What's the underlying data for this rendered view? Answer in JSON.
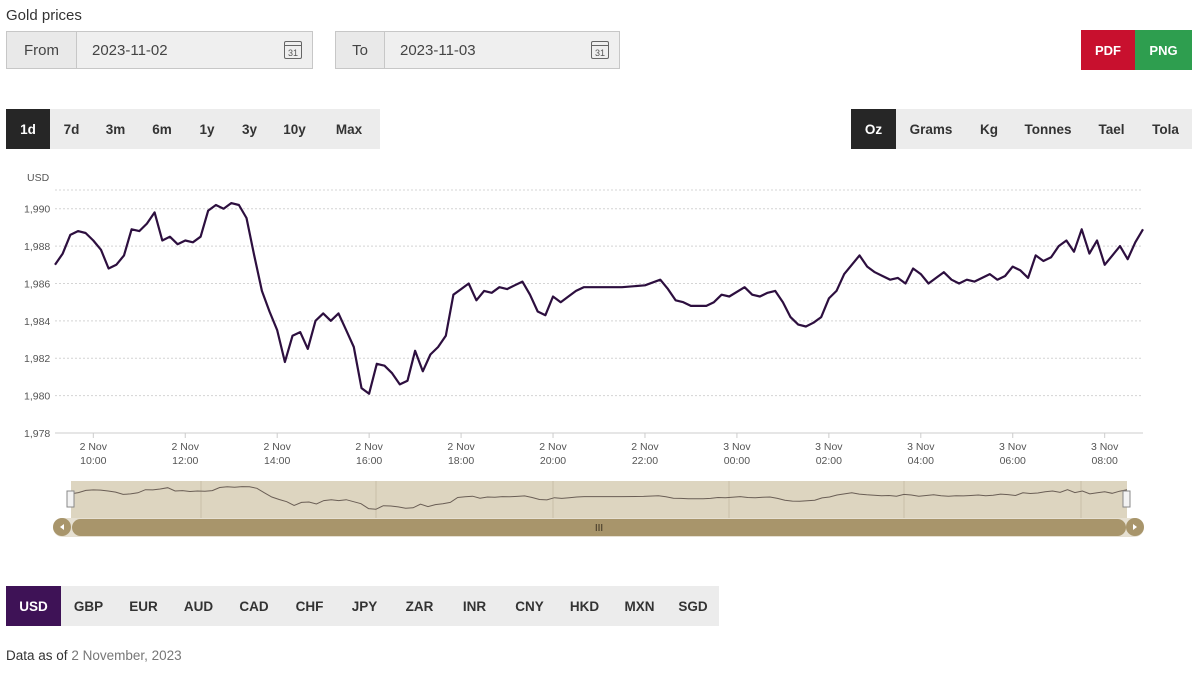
{
  "page": {
    "title": "Gold prices"
  },
  "date_range": {
    "from_label": "From",
    "from_value": "2023-11-02",
    "to_label": "To",
    "to_value": "2023-11-03",
    "calendar_day": "31"
  },
  "export": {
    "pdf_label": "PDF",
    "png_label": "PNG",
    "pdf_color": "#c8102e",
    "png_color": "#2e9e4f"
  },
  "periods": [
    "1d",
    "7d",
    "3m",
    "6m",
    "1y",
    "3y",
    "10y",
    "Max"
  ],
  "period_active": "1d",
  "units": [
    "Oz",
    "Grams",
    "Kg",
    "Tonnes",
    "Tael",
    "Tola"
  ],
  "unit_active": "Oz",
  "currencies": [
    "USD",
    "GBP",
    "EUR",
    "AUD",
    "CAD",
    "CHF",
    "JPY",
    "ZAR",
    "INR",
    "CNY",
    "HKD",
    "MXN",
    "SGD"
  ],
  "currency_active": "USD",
  "footer": {
    "prefix": "Data as of",
    "date": "2 November, 2023"
  },
  "navigator": {
    "handle_label": "III",
    "fill_color": "#ddd5c0",
    "bar_color": "#a8956b"
  },
  "chart_data": {
    "type": "line",
    "title": "",
    "ylabel": "USD",
    "ylim": [
      1978,
      1991
    ],
    "grid": true,
    "line_color": "#2d0f3f",
    "y_ticks": [
      1978,
      1980,
      1982,
      1984,
      1986,
      1988,
      1990
    ],
    "y_tick_labels": [
      "1,978",
      "1,980",
      "1,982",
      "1,984",
      "1,986",
      "1,988",
      "1,990"
    ],
    "x_ticks": [
      {
        "t": "2023-11-02 10:00",
        "day": "2 Nov",
        "time": "10:00"
      },
      {
        "t": "2023-11-02 12:00",
        "day": "2 Nov",
        "time": "12:00"
      },
      {
        "t": "2023-11-02 14:00",
        "day": "2 Nov",
        "time": "14:00"
      },
      {
        "t": "2023-11-02 16:00",
        "day": "2 Nov",
        "time": "16:00"
      },
      {
        "t": "2023-11-02 18:00",
        "day": "2 Nov",
        "time": "18:00"
      },
      {
        "t": "2023-11-02 20:00",
        "day": "2 Nov",
        "time": "20:00"
      },
      {
        "t": "2023-11-02 22:00",
        "day": "2 Nov",
        "time": "22:00"
      },
      {
        "t": "2023-11-03 00:00",
        "day": "3 Nov",
        "time": "00:00"
      },
      {
        "t": "2023-11-03 02:00",
        "day": "3 Nov",
        "time": "02:00"
      },
      {
        "t": "2023-11-03 04:00",
        "day": "3 Nov",
        "time": "04:00"
      },
      {
        "t": "2023-11-03 06:00",
        "day": "3 Nov",
        "time": "06:00"
      },
      {
        "t": "2023-11-03 08:00",
        "day": "3 Nov",
        "time": "08:00"
      }
    ],
    "x_range": [
      "2023-11-02 09:10",
      "2023-11-03 08:50"
    ],
    "series": [
      {
        "points": [
          [
            "2023-11-02 09:10",
            1987.0
          ],
          [
            "2023-11-02 09:20",
            1987.6
          ],
          [
            "2023-11-02 09:30",
            1988.6
          ],
          [
            "2023-11-02 09:40",
            1988.8
          ],
          [
            "2023-11-02 09:50",
            1988.7
          ],
          [
            "2023-11-02 10:00",
            1988.3
          ],
          [
            "2023-11-02 10:10",
            1987.8
          ],
          [
            "2023-11-02 10:20",
            1986.8
          ],
          [
            "2023-11-02 10:30",
            1987.0
          ],
          [
            "2023-11-02 10:40",
            1987.5
          ],
          [
            "2023-11-02 10:50",
            1988.9
          ],
          [
            "2023-11-02 11:00",
            1988.8
          ],
          [
            "2023-11-02 11:10",
            1989.2
          ],
          [
            "2023-11-02 11:20",
            1989.8
          ],
          [
            "2023-11-02 11:30",
            1988.3
          ],
          [
            "2023-11-02 11:40",
            1988.5
          ],
          [
            "2023-11-02 11:50",
            1988.1
          ],
          [
            "2023-11-02 12:00",
            1988.3
          ],
          [
            "2023-11-02 12:10",
            1988.2
          ],
          [
            "2023-11-02 12:20",
            1988.5
          ],
          [
            "2023-11-02 12:30",
            1989.9
          ],
          [
            "2023-11-02 12:40",
            1990.2
          ],
          [
            "2023-11-02 12:50",
            1990.0
          ],
          [
            "2023-11-02 13:00",
            1990.3
          ],
          [
            "2023-11-02 13:10",
            1990.2
          ],
          [
            "2023-11-02 13:20",
            1989.5
          ],
          [
            "2023-11-02 13:30",
            1987.5
          ],
          [
            "2023-11-02 13:40",
            1985.6
          ],
          [
            "2023-11-02 13:50",
            1984.5
          ],
          [
            "2023-11-02 14:00",
            1983.5
          ],
          [
            "2023-11-02 14:10",
            1981.8
          ],
          [
            "2023-11-02 14:20",
            1983.2
          ],
          [
            "2023-11-02 14:30",
            1983.4
          ],
          [
            "2023-11-02 14:40",
            1982.5
          ],
          [
            "2023-11-02 14:50",
            1984.0
          ],
          [
            "2023-11-02 15:00",
            1984.4
          ],
          [
            "2023-11-02 15:10",
            1984.0
          ],
          [
            "2023-11-02 15:20",
            1984.4
          ],
          [
            "2023-11-02 15:30",
            1983.5
          ],
          [
            "2023-11-02 15:40",
            1982.6
          ],
          [
            "2023-11-02 15:50",
            1980.4
          ],
          [
            "2023-11-02 16:00",
            1980.1
          ],
          [
            "2023-11-02 16:10",
            1981.7
          ],
          [
            "2023-11-02 16:20",
            1981.6
          ],
          [
            "2023-11-02 16:30",
            1981.2
          ],
          [
            "2023-11-02 16:40",
            1980.6
          ],
          [
            "2023-11-02 16:50",
            1980.8
          ],
          [
            "2023-11-02 17:00",
            1982.4
          ],
          [
            "2023-11-02 17:10",
            1981.3
          ],
          [
            "2023-11-02 17:20",
            1982.2
          ],
          [
            "2023-11-02 17:30",
            1982.6
          ],
          [
            "2023-11-02 17:40",
            1983.2
          ],
          [
            "2023-11-02 17:50",
            1985.4
          ],
          [
            "2023-11-02 18:00",
            1985.7
          ],
          [
            "2023-11-02 18:10",
            1986.0
          ],
          [
            "2023-11-02 18:20",
            1985.1
          ],
          [
            "2023-11-02 18:30",
            1985.6
          ],
          [
            "2023-11-02 18:40",
            1985.5
          ],
          [
            "2023-11-02 18:50",
            1985.8
          ],
          [
            "2023-11-02 19:00",
            1985.7
          ],
          [
            "2023-11-02 19:10",
            1985.9
          ],
          [
            "2023-11-02 19:20",
            1986.1
          ],
          [
            "2023-11-02 19:30",
            1985.4
          ],
          [
            "2023-11-02 19:40",
            1984.5
          ],
          [
            "2023-11-02 19:50",
            1984.3
          ],
          [
            "2023-11-02 20:00",
            1985.3
          ],
          [
            "2023-11-02 20:10",
            1985.0
          ],
          [
            "2023-11-02 20:20",
            1985.3
          ],
          [
            "2023-11-02 20:30",
            1985.6
          ],
          [
            "2023-11-02 20:40",
            1985.8
          ],
          [
            "2023-11-02 21:00",
            1985.8
          ],
          [
            "2023-11-02 21:30",
            1985.8
          ],
          [
            "2023-11-02 22:00",
            1985.9
          ],
          [
            "2023-11-02 22:20",
            1986.2
          ],
          [
            "2023-11-02 22:30",
            1985.7
          ],
          [
            "2023-11-02 22:40",
            1985.1
          ],
          [
            "2023-11-02 22:50",
            1985.0
          ],
          [
            "2023-11-02 23:00",
            1984.8
          ],
          [
            "2023-11-02 23:20",
            1984.8
          ],
          [
            "2023-11-02 23:30",
            1985.0
          ],
          [
            "2023-11-02 23:40",
            1985.4
          ],
          [
            "2023-11-02 23:50",
            1985.3
          ],
          [
            "2023-11-03 00:10",
            1985.8
          ],
          [
            "2023-11-03 00:20",
            1985.4
          ],
          [
            "2023-11-03 00:30",
            1985.3
          ],
          [
            "2023-11-03 00:40",
            1985.5
          ],
          [
            "2023-11-03 00:50",
            1985.6
          ],
          [
            "2023-11-03 01:00",
            1985.0
          ],
          [
            "2023-11-03 01:10",
            1984.2
          ],
          [
            "2023-11-03 01:20",
            1983.8
          ],
          [
            "2023-11-03 01:30",
            1983.7
          ],
          [
            "2023-11-03 01:40",
            1983.9
          ],
          [
            "2023-11-03 01:50",
            1984.2
          ],
          [
            "2023-11-03 02:00",
            1985.2
          ],
          [
            "2023-11-03 02:10",
            1985.6
          ],
          [
            "2023-11-03 02:20",
            1986.5
          ],
          [
            "2023-11-03 02:30",
            1987.0
          ],
          [
            "2023-11-03 02:40",
            1987.5
          ],
          [
            "2023-11-03 02:50",
            1986.9
          ],
          [
            "2023-11-03 03:00",
            1986.6
          ],
          [
            "2023-11-03 03:10",
            1986.4
          ],
          [
            "2023-11-03 03:20",
            1986.2
          ],
          [
            "2023-11-03 03:30",
            1986.3
          ],
          [
            "2023-11-03 03:40",
            1986.0
          ],
          [
            "2023-11-03 03:50",
            1986.8
          ],
          [
            "2023-11-03 04:00",
            1986.5
          ],
          [
            "2023-11-03 04:10",
            1986.0
          ],
          [
            "2023-11-03 04:20",
            1986.3
          ],
          [
            "2023-11-03 04:30",
            1986.6
          ],
          [
            "2023-11-03 04:40",
            1986.2
          ],
          [
            "2023-11-03 04:50",
            1986.0
          ],
          [
            "2023-11-03 05:00",
            1986.2
          ],
          [
            "2023-11-03 05:10",
            1986.1
          ],
          [
            "2023-11-03 05:20",
            1986.3
          ],
          [
            "2023-11-03 05:30",
            1986.5
          ],
          [
            "2023-11-03 05:40",
            1986.2
          ],
          [
            "2023-11-03 05:50",
            1986.4
          ],
          [
            "2023-11-03 06:00",
            1986.9
          ],
          [
            "2023-11-03 06:10",
            1986.7
          ],
          [
            "2023-11-03 06:20",
            1986.3
          ],
          [
            "2023-11-03 06:30",
            1987.5
          ],
          [
            "2023-11-03 06:40",
            1987.2
          ],
          [
            "2023-11-03 06:50",
            1987.4
          ],
          [
            "2023-11-03 07:00",
            1988.0
          ],
          [
            "2023-11-03 07:10",
            1988.3
          ],
          [
            "2023-11-03 07:20",
            1987.7
          ],
          [
            "2023-11-03 07:30",
            1988.9
          ],
          [
            "2023-11-03 07:40",
            1987.6
          ],
          [
            "2023-11-03 07:50",
            1988.3
          ],
          [
            "2023-11-03 08:00",
            1987.0
          ],
          [
            "2023-11-03 08:10",
            1987.5
          ],
          [
            "2023-11-03 08:20",
            1988.0
          ],
          [
            "2023-11-03 08:30",
            1987.3
          ],
          [
            "2023-11-03 08:40",
            1988.2
          ],
          [
            "2023-11-03 08:50",
            1988.9
          ]
        ]
      }
    ]
  }
}
